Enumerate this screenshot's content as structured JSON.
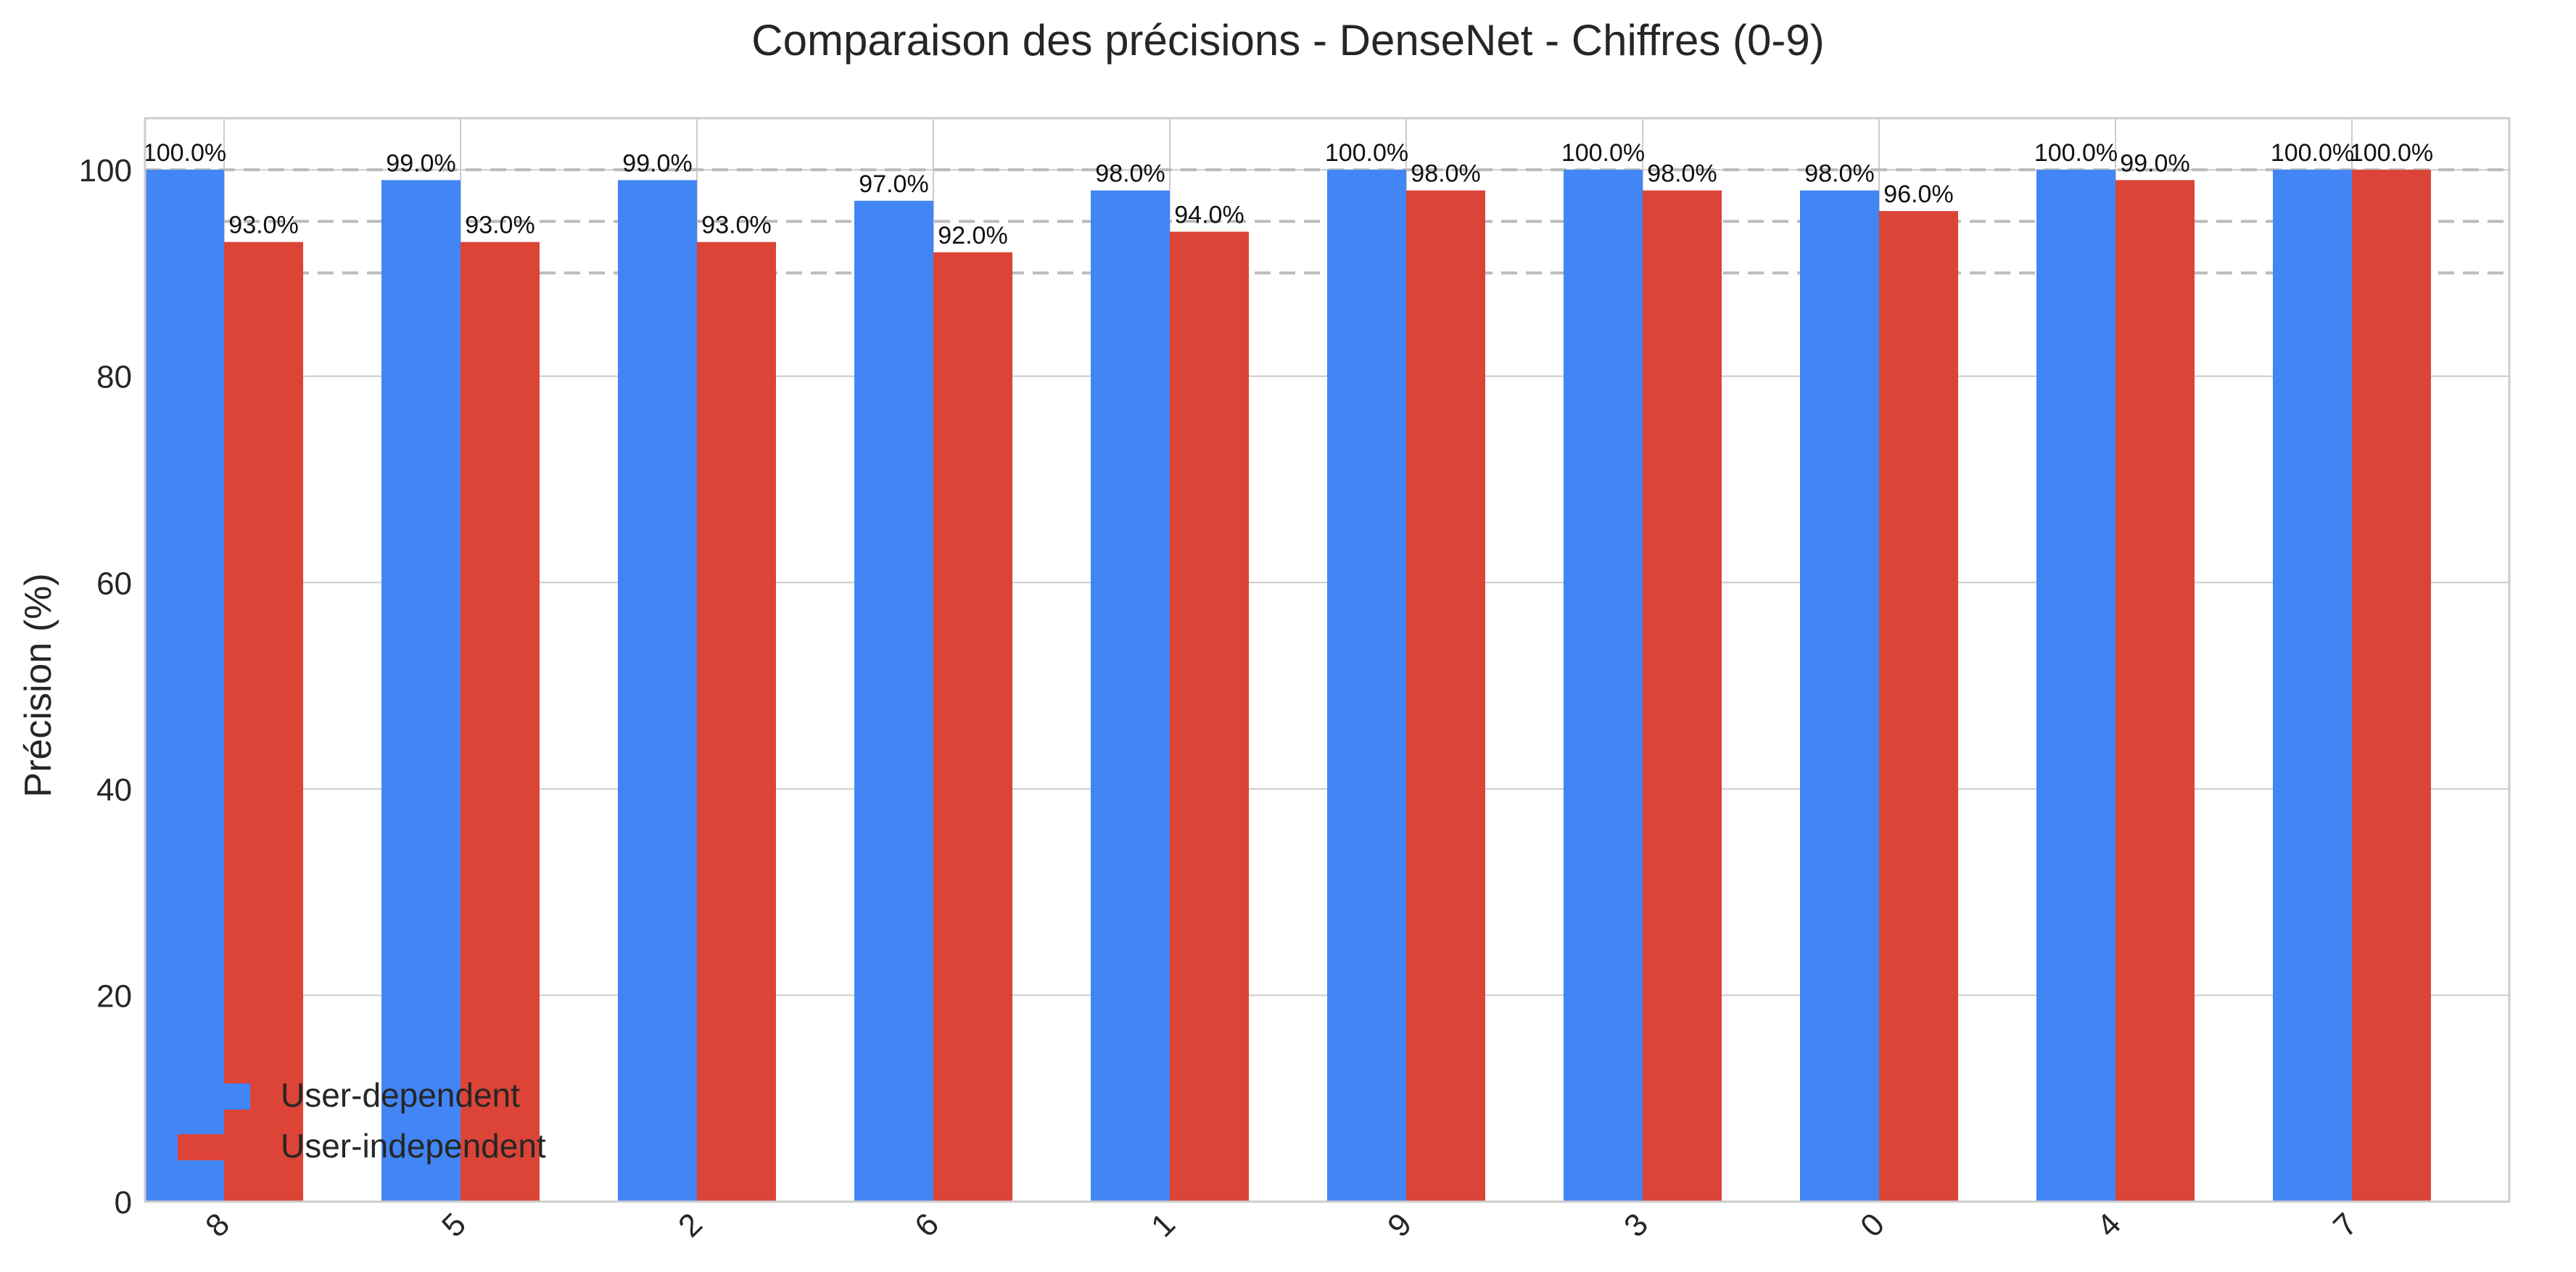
{
  "chart_data": {
    "type": "bar",
    "title": "Comparaison des précisions - DenseNet - Chiffres (0-9)",
    "xlabel": "",
    "ylabel": "Précision (%)",
    "categories": [
      "8",
      "5",
      "2",
      "6",
      "1",
      "9",
      "3",
      "0",
      "4",
      "7"
    ],
    "series": [
      {
        "name": "User-dependent",
        "color": "#4285f4",
        "values": [
          100.0,
          99.0,
          99.0,
          97.0,
          98.0,
          100.0,
          100.0,
          98.0,
          100.0,
          100.0
        ],
        "labels": [
          "100.0%",
          "99.0%",
          "99.0%",
          "97.0%",
          "98.0%",
          "100.0%",
          "100.0%",
          "98.0%",
          "100.0%",
          "100.0%"
        ]
      },
      {
        "name": "User-independent",
        "color": "#db4437",
        "values": [
          93.0,
          93.0,
          93.0,
          92.0,
          94.0,
          98.0,
          98.0,
          96.0,
          99.0,
          100.0
        ],
        "labels": [
          "93.0%",
          "93.0%",
          "93.0%",
          "92.0%",
          "94.0%",
          "98.0%",
          "98.0%",
          "96.0%",
          "99.0%",
          "100.0%"
        ]
      }
    ],
    "ylim": [
      0,
      105
    ],
    "yticks": [
      0,
      20,
      40,
      60,
      80,
      100
    ],
    "reference_lines": [
      90,
      95,
      100
    ],
    "grid": true,
    "legend_position": "lower-left"
  }
}
